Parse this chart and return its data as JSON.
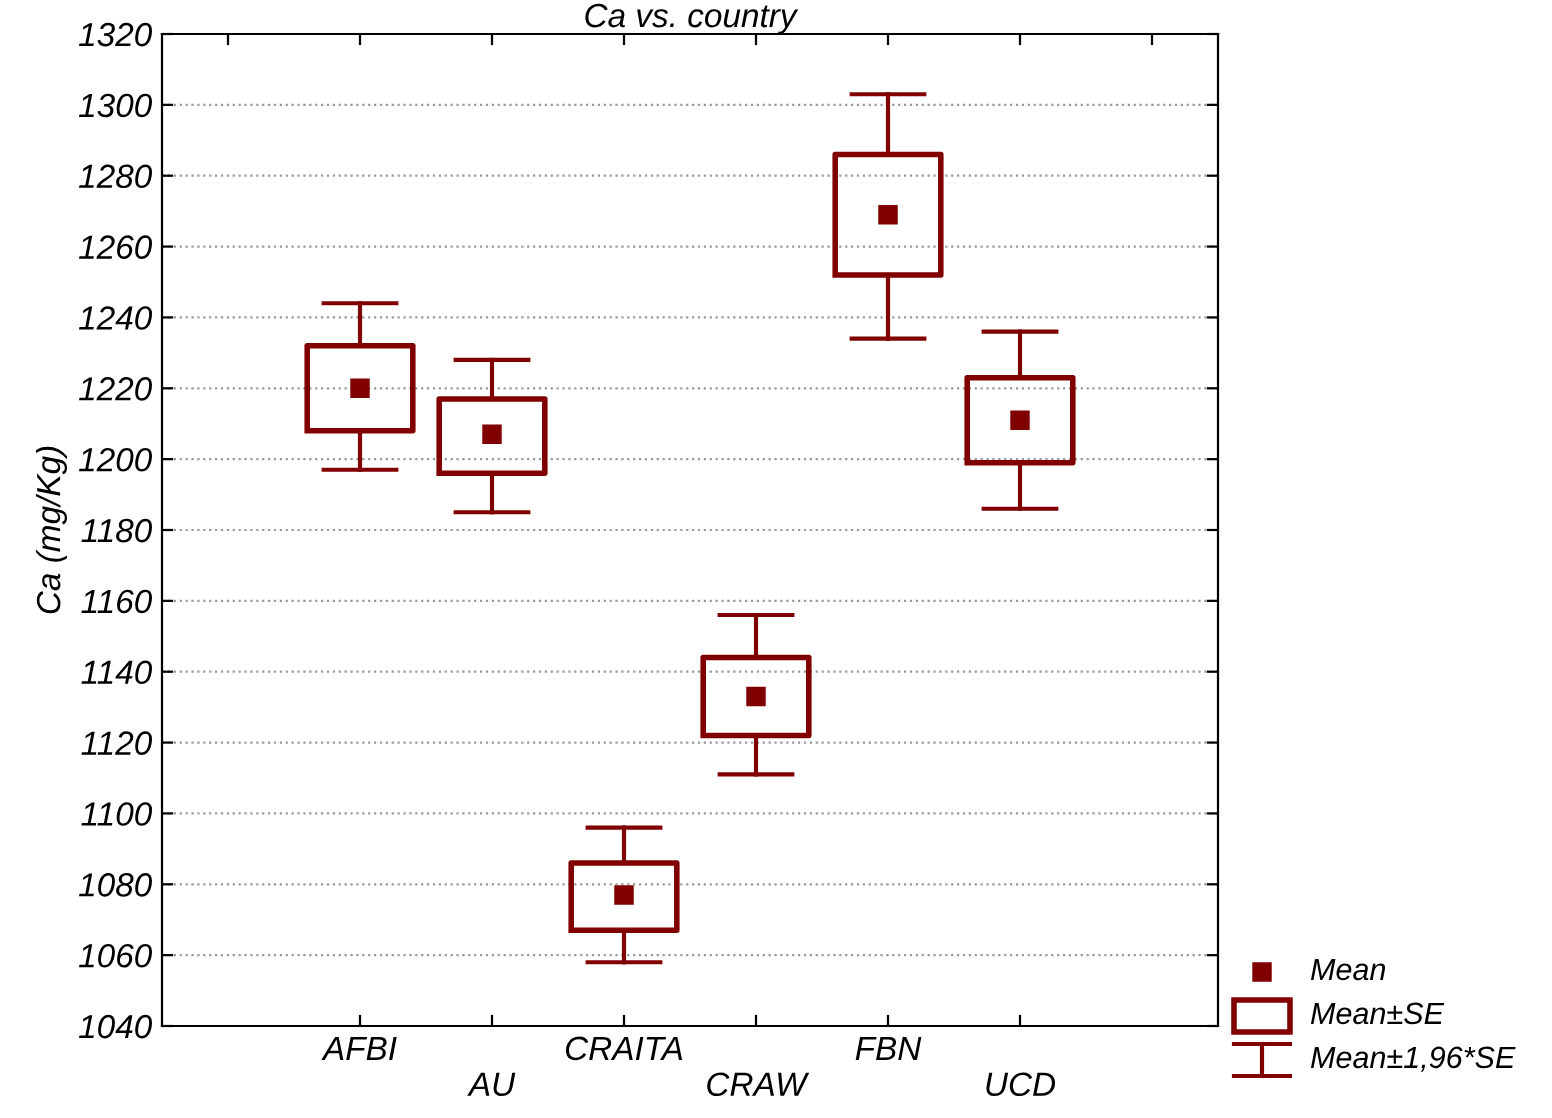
{
  "chart_data": {
    "type": "box",
    "title": "Ca vs. country",
    "ylabel": "Ca (mg/Kg)",
    "categories": [
      "AFBI",
      "AU",
      "CRAITA",
      "CRAW",
      "FBN",
      "UCD"
    ],
    "series": [
      {
        "color": "#800000",
        "boxes": [
          {
            "low": 1197,
            "q1": 1208,
            "mean": 1220,
            "q3": 1232,
            "high": 1244
          },
          {
            "low": 1185,
            "q1": 1196,
            "mean": 1207,
            "q3": 1217,
            "high": 1228
          },
          {
            "low": 1058,
            "q1": 1067,
            "mean": 1077,
            "q3": 1086,
            "high": 1096
          },
          {
            "low": 1111,
            "q1": 1122,
            "mean": 1133,
            "q3": 1144,
            "high": 1156
          },
          {
            "low": 1234,
            "q1": 1252,
            "mean": 1269,
            "q3": 1286,
            "high": 1303
          },
          {
            "low": 1186,
            "q1": 1199,
            "mean": 1211,
            "q3": 1223,
            "high": 1236
          }
        ]
      }
    ],
    "annotations": [
      "Mean",
      "Mean±SE",
      "Mean±1,96*SE"
    ],
    "ylim": [
      1040,
      1320
    ],
    "yticks": [
      1040,
      1060,
      1080,
      1100,
      1120,
      1140,
      1160,
      1180,
      1200,
      1220,
      1240,
      1260,
      1280,
      1300,
      1320
    ],
    "grid": "y",
    "marker": "square"
  }
}
